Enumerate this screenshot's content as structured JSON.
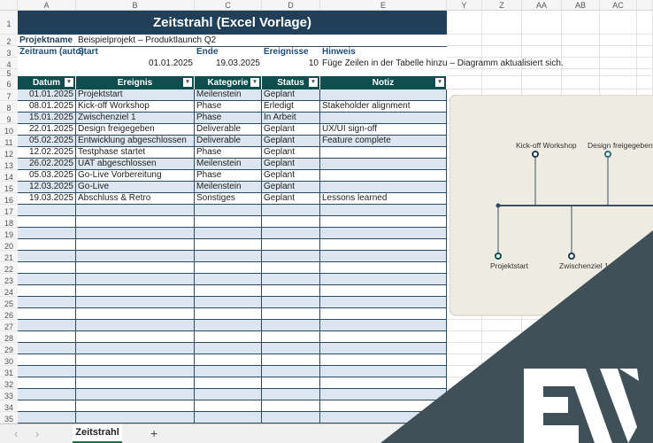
{
  "columns": [
    "A",
    "B",
    "C",
    "D",
    "E",
    "Y",
    "Z",
    "AA",
    "AB",
    "AC"
  ],
  "title": "Zeitstrahl (Excel Vorlage)",
  "meta": {
    "projektname_label": "Projektname",
    "projektname": "Beispielprojekt – Produktlaunch Q2",
    "zeitraum_label": "Zeitraum (auto)",
    "start_label": "Start",
    "ende_label": "Ende",
    "ereignisse_label": "Ereignisse",
    "hinweis_label": "Hinweis",
    "start": "01.01.2025",
    "ende": "19.03.2025",
    "ereignisse": "10",
    "hinweis": "Füge Zeilen in der Tabelle hinzu – Diagramm aktualisiert sich."
  },
  "table": {
    "headers": [
      "Datum",
      "Ereignis",
      "Kategorie",
      "Status",
      "Notiz"
    ],
    "rows": [
      [
        "01.01.2025",
        "Projektstart",
        "Meilenstein",
        "Geplant",
        ""
      ],
      [
        "08.01.2025",
        "Kick-off Workshop",
        "Phase",
        "Erledigt",
        "Stakeholder alignment"
      ],
      [
        "15.01.2025",
        "Zwischenziel 1",
        "Phase",
        "In Arbeit",
        ""
      ],
      [
        "22.01.2025",
        "Design freigegeben",
        "Deliverable",
        "Geplant",
        "UX/UI sign-off"
      ],
      [
        "05.02.2025",
        "Entwicklung abgeschlossen",
        "Deliverable",
        "Geplant",
        "Feature complete"
      ],
      [
        "12.02.2025",
        "Testphase startet",
        "Phase",
        "Geplant",
        ""
      ],
      [
        "26.02.2025",
        "UAT abgeschlossen",
        "Meilenstein",
        "Geplant",
        ""
      ],
      [
        "05.03.2025",
        "Go-Live Vorbereitung",
        "Phase",
        "Geplant",
        ""
      ],
      [
        "12.03.2025",
        "Go-Live",
        "Meilenstein",
        "Geplant",
        ""
      ],
      [
        "19.03.2025",
        "Abschluss & Retro",
        "Sonstiges",
        "Geplant",
        "Lessons learned"
      ]
    ]
  },
  "timeline": {
    "labels": [
      "Projektstart",
      "Kick-off Workshop",
      "Zwischenziel 1",
      "Design freigegeben"
    ],
    "line_color": "#3c5060",
    "bg": "#eeebe1"
  },
  "sheet_tab": "Zeitstrahl",
  "add_sheet": "+",
  "nav": {
    "prev": "‹",
    "next": "›"
  },
  "colors": {
    "title_bg": "#1f4058",
    "header_bg": "#0f4e4e",
    "band": "#dce6f1",
    "logo_bg": "#3f5058"
  },
  "logo": "EW"
}
